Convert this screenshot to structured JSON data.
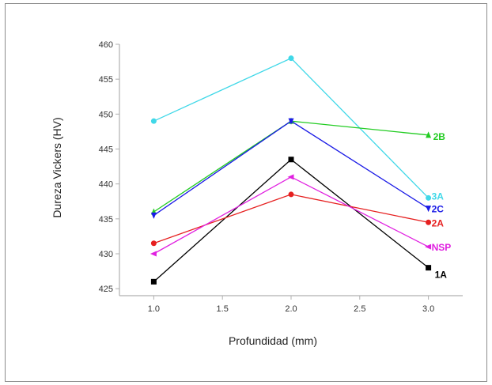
{
  "chart_data": {
    "type": "line",
    "xlabel": "Profundidad (mm)",
    "ylabel": "Dureza Vickers (HV)",
    "xlim": [
      0.75,
      3.25
    ],
    "ylim": [
      424,
      460
    ],
    "x_ticks": [
      "1.0",
      "1.5",
      "2.0",
      "2.5",
      "3.0"
    ],
    "y_ticks": [
      "425",
      "430",
      "435",
      "440",
      "445",
      "450",
      "455",
      "460"
    ],
    "grid": false,
    "legend": "labels at line ends",
    "x": [
      1.0,
      2.0,
      3.0
    ],
    "series": [
      {
        "name": "1A",
        "values": [
          426.0,
          443.5,
          428.0
        ],
        "color": "#000000",
        "marker": "square"
      },
      {
        "name": "3A",
        "values": [
          449.0,
          458.0,
          438.0
        ],
        "color": "#40d8e8",
        "marker": "circle"
      },
      {
        "name": "2B",
        "values": [
          436.0,
          449.0,
          447.0
        ],
        "color": "#22cc22",
        "marker": "triangle-up"
      },
      {
        "name": "2C",
        "values": [
          435.5,
          449.0,
          436.5
        ],
        "color": "#1a1ae6",
        "marker": "triangle-down"
      },
      {
        "name": "2A",
        "values": [
          431.5,
          438.5,
          434.5
        ],
        "color": "#e62020",
        "marker": "circle"
      },
      {
        "name": "NSP",
        "values": [
          430.0,
          441.0,
          431.0
        ],
        "color": "#e020e0",
        "marker": "triangle-left"
      }
    ]
  }
}
